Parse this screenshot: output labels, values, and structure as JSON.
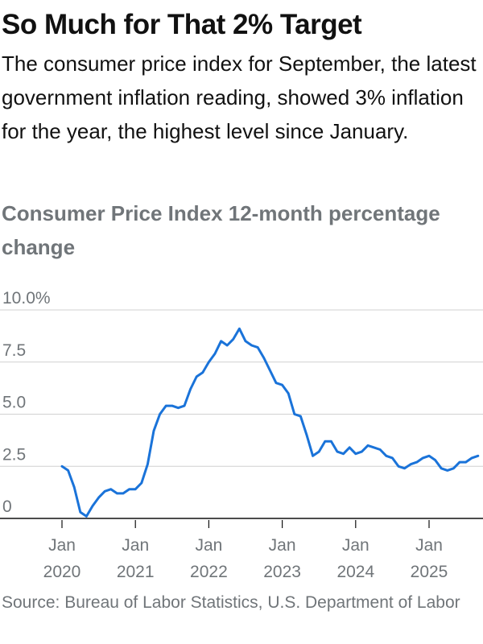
{
  "header": {
    "headline": "So Much for That 2% Target",
    "dek": "The consumer price index for September, the latest government inflation reading, showed 3% inflation for the year, the highest level since January."
  },
  "chart_data": {
    "type": "line",
    "title": "Consumer Price Index 12-month percentage change",
    "xlabel": "",
    "ylabel": "",
    "y_ticks": [
      "10.0%",
      "7.5",
      "5.0",
      "2.5",
      "0"
    ],
    "y_tick_values": [
      10,
      7.5,
      5,
      2.5,
      0
    ],
    "ylim": [
      0,
      10
    ],
    "x_ticks": [
      {
        "month": "Jan",
        "year": "2020",
        "value": "2020-01"
      },
      {
        "month": "Jan",
        "year": "2021",
        "value": "2021-01"
      },
      {
        "month": "Jan",
        "year": "2022",
        "value": "2022-01"
      },
      {
        "month": "Jan",
        "year": "2023",
        "value": "2023-01"
      },
      {
        "month": "Jan",
        "year": "2024",
        "value": "2024-01"
      },
      {
        "month": "Jan",
        "year": "2025",
        "value": "2025-01"
      }
    ],
    "xlim": [
      "2020-01",
      "2025-09"
    ],
    "grid": true,
    "line_color": "#1a73d9",
    "grid_color": "#d0d0d0",
    "axis_color": "#111111",
    "series": [
      {
        "x": [
          "2020-01",
          "2020-02",
          "2020-03",
          "2020-04",
          "2020-05",
          "2020-06",
          "2020-07",
          "2020-08",
          "2020-09",
          "2020-10",
          "2020-11",
          "2020-12",
          "2021-01",
          "2021-02",
          "2021-03",
          "2021-04",
          "2021-05",
          "2021-06",
          "2021-07",
          "2021-08",
          "2021-09",
          "2021-10",
          "2021-11",
          "2021-12",
          "2022-01",
          "2022-02",
          "2022-03",
          "2022-04",
          "2022-05",
          "2022-06",
          "2022-07",
          "2022-08",
          "2022-09",
          "2022-10",
          "2022-11",
          "2022-12",
          "2023-01",
          "2023-02",
          "2023-03",
          "2023-04",
          "2023-05",
          "2023-06",
          "2023-07",
          "2023-08",
          "2023-09",
          "2023-10",
          "2023-11",
          "2023-12",
          "2024-01",
          "2024-02",
          "2024-03",
          "2024-04",
          "2024-05",
          "2024-06",
          "2024-07",
          "2024-08",
          "2024-09",
          "2024-10",
          "2024-11",
          "2024-12",
          "2025-01",
          "2025-02",
          "2025-03",
          "2025-04",
          "2025-05",
          "2025-06",
          "2025-07",
          "2025-08",
          "2025-09"
        ],
        "values": [
          2.5,
          2.3,
          1.5,
          0.3,
          0.1,
          0.6,
          1.0,
          1.3,
          1.4,
          1.2,
          1.2,
          1.4,
          1.4,
          1.7,
          2.6,
          4.2,
          5.0,
          5.4,
          5.4,
          5.3,
          5.4,
          6.2,
          6.8,
          7.0,
          7.5,
          7.9,
          8.5,
          8.3,
          8.6,
          9.1,
          8.5,
          8.3,
          8.2,
          7.7,
          7.1,
          6.5,
          6.4,
          6.0,
          5.0,
          4.9,
          4.0,
          3.0,
          3.2,
          3.7,
          3.7,
          3.2,
          3.1,
          3.4,
          3.1,
          3.2,
          3.5,
          3.4,
          3.3,
          3.0,
          2.9,
          2.5,
          2.4,
          2.6,
          2.7,
          2.9,
          3.0,
          2.8,
          2.4,
          2.3,
          2.4,
          2.7,
          2.7,
          2.9,
          3.0
        ]
      }
    ]
  },
  "footer": {
    "source": "Source: Bureau of Labor Statistics, U.S. Department of Labor"
  }
}
